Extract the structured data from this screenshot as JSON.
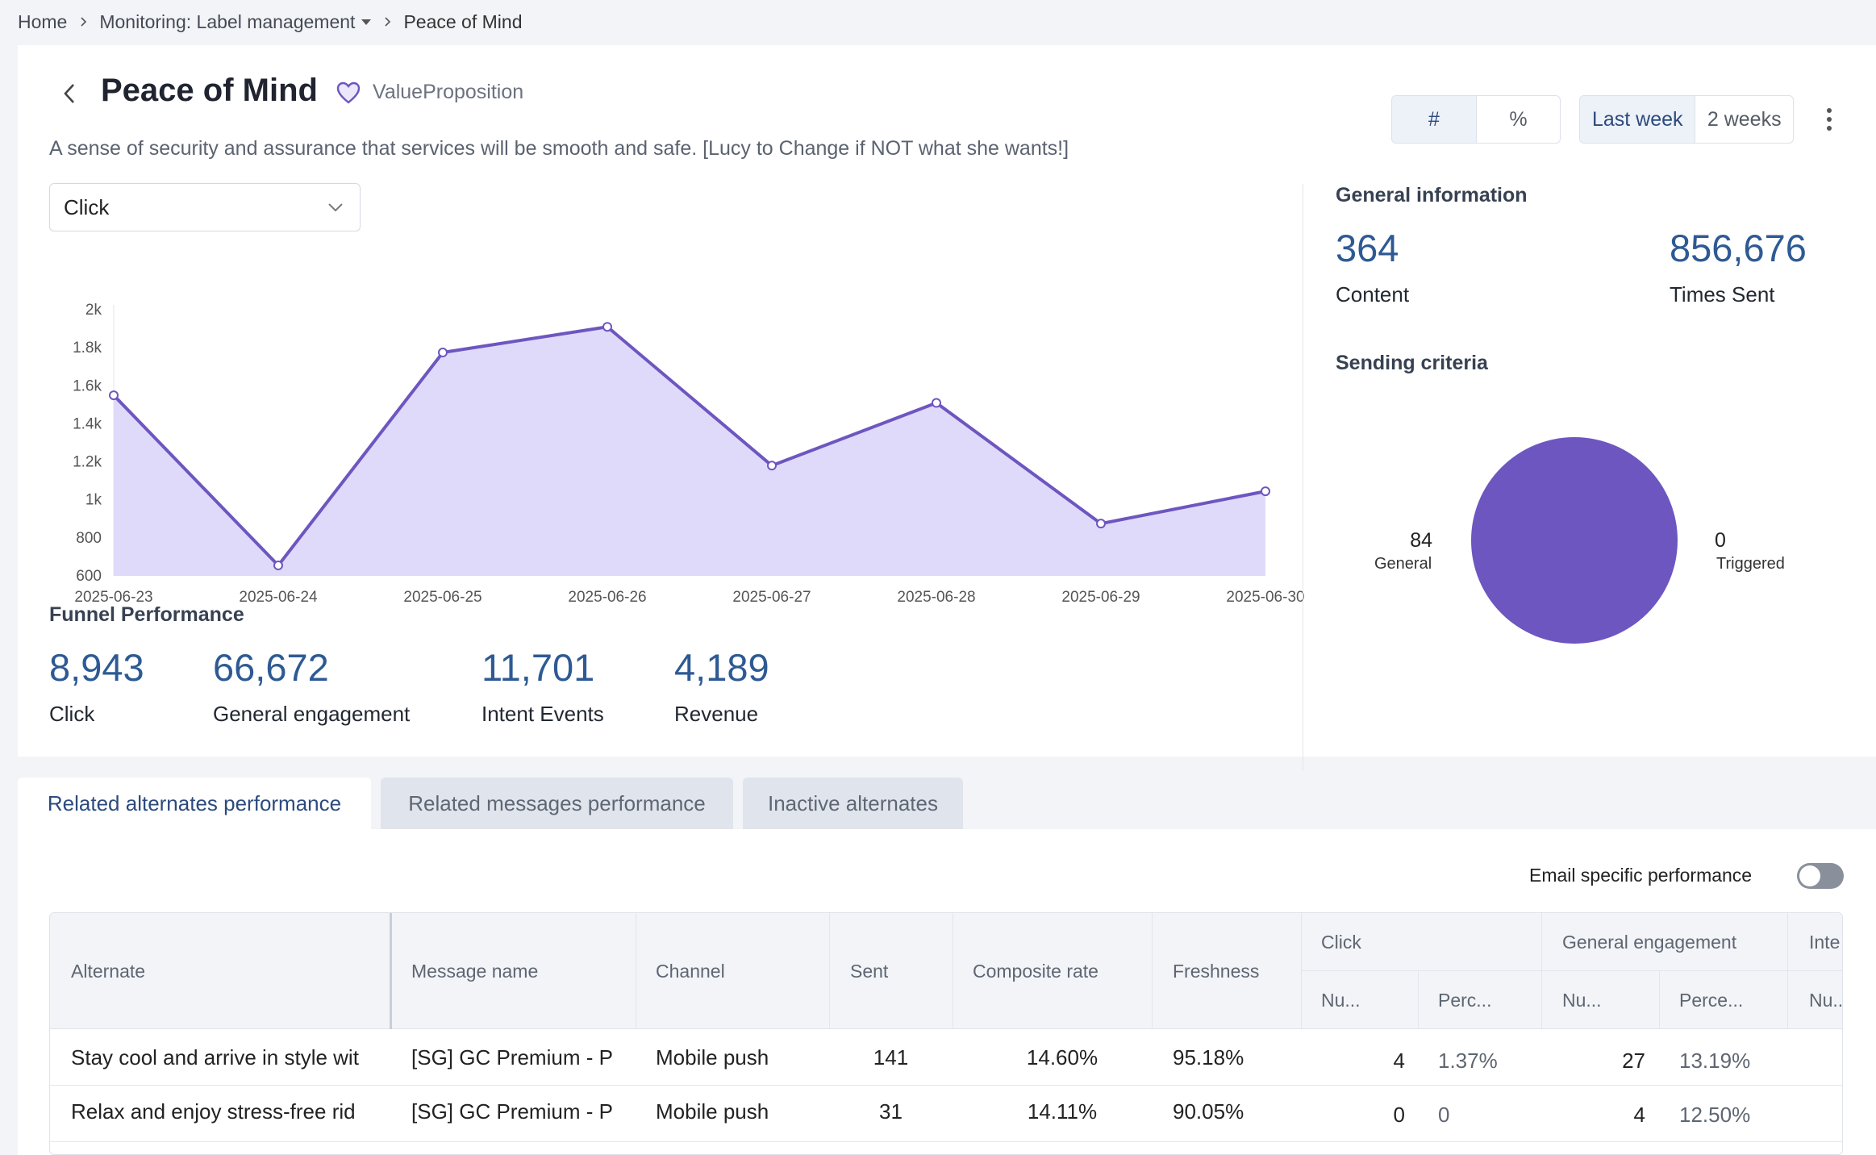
{
  "breadcrumb": {
    "home": "Home",
    "section": "Monitoring: Label management",
    "current": "Peace of Mind"
  },
  "header": {
    "title": "Peace of Mind",
    "tag": "ValueProposition",
    "description": "A sense of security and assurance that services will be smooth and safe. [Lucy to Change if NOT what she wants!]"
  },
  "controls": {
    "mode_options": [
      "#",
      "%"
    ],
    "mode_selected": "#",
    "range_options": [
      "Last week",
      "2 weeks"
    ],
    "range_selected": "Last week",
    "metric_select": "Click"
  },
  "chart_data": {
    "type": "area",
    "x": [
      "2025-06-23",
      "2025-06-24",
      "2025-06-25",
      "2025-06-26",
      "2025-06-27",
      "2025-06-28",
      "2025-06-29",
      "2025-06-30"
    ],
    "series": [
      {
        "values": [
          1550,
          655,
          1775,
          1910,
          1180,
          1510,
          875,
          1045
        ]
      }
    ],
    "yticks": [
      "2k",
      "1.8k",
      "1.6k",
      "1.4k",
      "1.2k",
      "1k",
      "800",
      "600"
    ],
    "ylim": [
      600,
      2000
    ],
    "color": "#6e56c0",
    "fill": "#e0dafa"
  },
  "funnel": {
    "title": "Funnel Performance",
    "stats": [
      {
        "value": "8,943",
        "label": "Click"
      },
      {
        "value": "66,672",
        "label": "General engagement"
      },
      {
        "value": "11,701",
        "label": "Intent Events"
      },
      {
        "value": "4,189",
        "label": "Revenue"
      }
    ]
  },
  "general_info": {
    "title": "General information",
    "content_value": "364",
    "content_label": "Content",
    "sent_value": "856,676",
    "sent_label": "Times Sent"
  },
  "sending_criteria": {
    "title": "Sending criteria",
    "general_value": "84",
    "general_label": "General",
    "triggered_value": "0",
    "triggered_label": "Triggered",
    "pie_color": "#6e56c0"
  },
  "tabs": [
    "Related alternates performance",
    "Related messages performance",
    "Inactive alternates"
  ],
  "email_toggle_label": "Email specific performance",
  "table": {
    "headers": {
      "alternate": "Alternate",
      "message": "Message name",
      "channel": "Channel",
      "sent": "Sent",
      "composite": "Composite rate",
      "freshness": "Freshness",
      "click": "Click",
      "general": "General engagement",
      "intent": "Inte",
      "num": "Nu...",
      "perc": "Perc...",
      "perce": "Perce..."
    },
    "rows": [
      {
        "alternate": "Stay cool and arrive in style wit",
        "message": "[SG] GC Premium - P",
        "channel": "Mobile push",
        "sent": "141",
        "composite": "14.60%",
        "freshness": "95.18%",
        "click_num": "4",
        "click_perc": "1.37%",
        "ge_num": "27",
        "ge_perc": "13.19%"
      },
      {
        "alternate": "Relax and enjoy stress-free rid",
        "message": "[SG] GC Premium - P",
        "channel": "Mobile push",
        "sent": "31",
        "composite": "14.11%",
        "freshness": "90.05%",
        "click_num": "0",
        "click_perc": "0",
        "ge_num": "4",
        "ge_perc": "12.50%"
      }
    ]
  }
}
